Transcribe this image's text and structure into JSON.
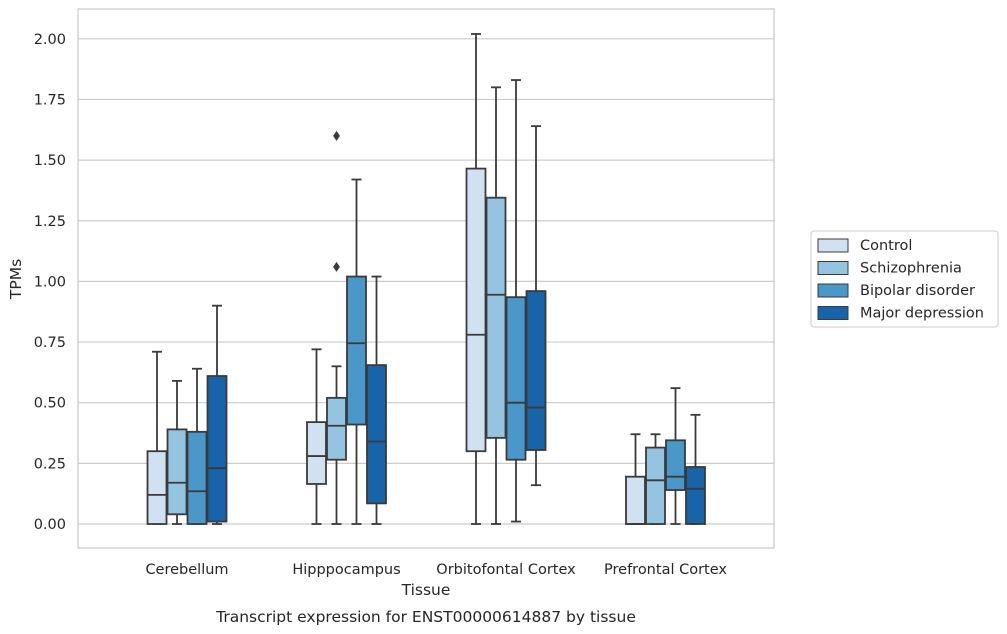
{
  "chart_data": {
    "type": "box",
    "caption": "Transcript expression for ENST00000614887 by tissue",
    "xlabel": "Tissue",
    "ylabel": "TPMs",
    "ylim": [
      -0.1,
      2.12
    ],
    "yticks": [
      "0.00",
      "0.25",
      "0.50",
      "0.75",
      "1.00",
      "1.25",
      "1.50",
      "1.75",
      "2.00"
    ],
    "grid": true,
    "legend_position": "right",
    "categories": [
      "Cerebellum",
      "Hipppocampus",
      "Orbitofontal Cortex",
      "Prefrontal Cortex"
    ],
    "series": [
      {
        "name": "Control",
        "color": "#d0e1f2",
        "boxes": [
          {
            "min": 0.0,
            "q1": 0.0,
            "median": 0.12,
            "q3": 0.3,
            "max": 0.71,
            "outliers": []
          },
          {
            "min": 0.0,
            "q1": 0.165,
            "median": 0.28,
            "q3": 0.42,
            "max": 0.72,
            "outliers": []
          },
          {
            "min": 0.0,
            "q1": 0.3,
            "median": 0.78,
            "q3": 1.465,
            "max": 2.02,
            "outliers": []
          },
          {
            "min": 0.0,
            "q1": 0.0,
            "median": 0.0,
            "q3": 0.195,
            "max": 0.37,
            "outliers": []
          }
        ]
      },
      {
        "name": "Schizophrenia",
        "color": "#94c4df",
        "boxes": [
          {
            "min": 0.0,
            "q1": 0.04,
            "median": 0.17,
            "q3": 0.39,
            "max": 0.59,
            "outliers": []
          },
          {
            "min": 0.0,
            "q1": 0.265,
            "median": 0.405,
            "q3": 0.52,
            "max": 0.65,
            "outliers": [
              1.06,
              1.6
            ]
          },
          {
            "min": 0.0,
            "q1": 0.355,
            "median": 0.945,
            "q3": 1.345,
            "max": 1.8,
            "outliers": []
          },
          {
            "min": 0.0,
            "q1": 0.0,
            "median": 0.18,
            "q3": 0.315,
            "max": 0.37,
            "outliers": []
          }
        ]
      },
      {
        "name": "Bipolar disorder",
        "color": "#4a98c9",
        "boxes": [
          {
            "min": 0.0,
            "q1": 0.0,
            "median": 0.135,
            "q3": 0.38,
            "max": 0.64,
            "outliers": []
          },
          {
            "min": 0.0,
            "q1": 0.41,
            "median": 0.745,
            "q3": 1.02,
            "max": 1.42,
            "outliers": []
          },
          {
            "min": 0.01,
            "q1": 0.265,
            "median": 0.5,
            "q3": 0.935,
            "max": 1.83,
            "outliers": []
          },
          {
            "min": 0.0,
            "q1": 0.14,
            "median": 0.195,
            "q3": 0.345,
            "max": 0.56,
            "outliers": []
          }
        ]
      },
      {
        "name": "Major depression",
        "color": "#1764ab",
        "boxes": [
          {
            "min": 0.0,
            "q1": 0.01,
            "median": 0.23,
            "q3": 0.61,
            "max": 0.9,
            "outliers": []
          },
          {
            "min": 0.0,
            "q1": 0.085,
            "median": 0.34,
            "q3": 0.655,
            "max": 1.02,
            "outliers": []
          },
          {
            "min": 0.16,
            "q1": 0.305,
            "median": 0.48,
            "q3": 0.96,
            "max": 1.64,
            "outliers": []
          },
          {
            "min": 0.0,
            "q1": 0.0,
            "median": 0.145,
            "q3": 0.235,
            "max": 0.45,
            "outliers": []
          }
        ]
      }
    ]
  }
}
